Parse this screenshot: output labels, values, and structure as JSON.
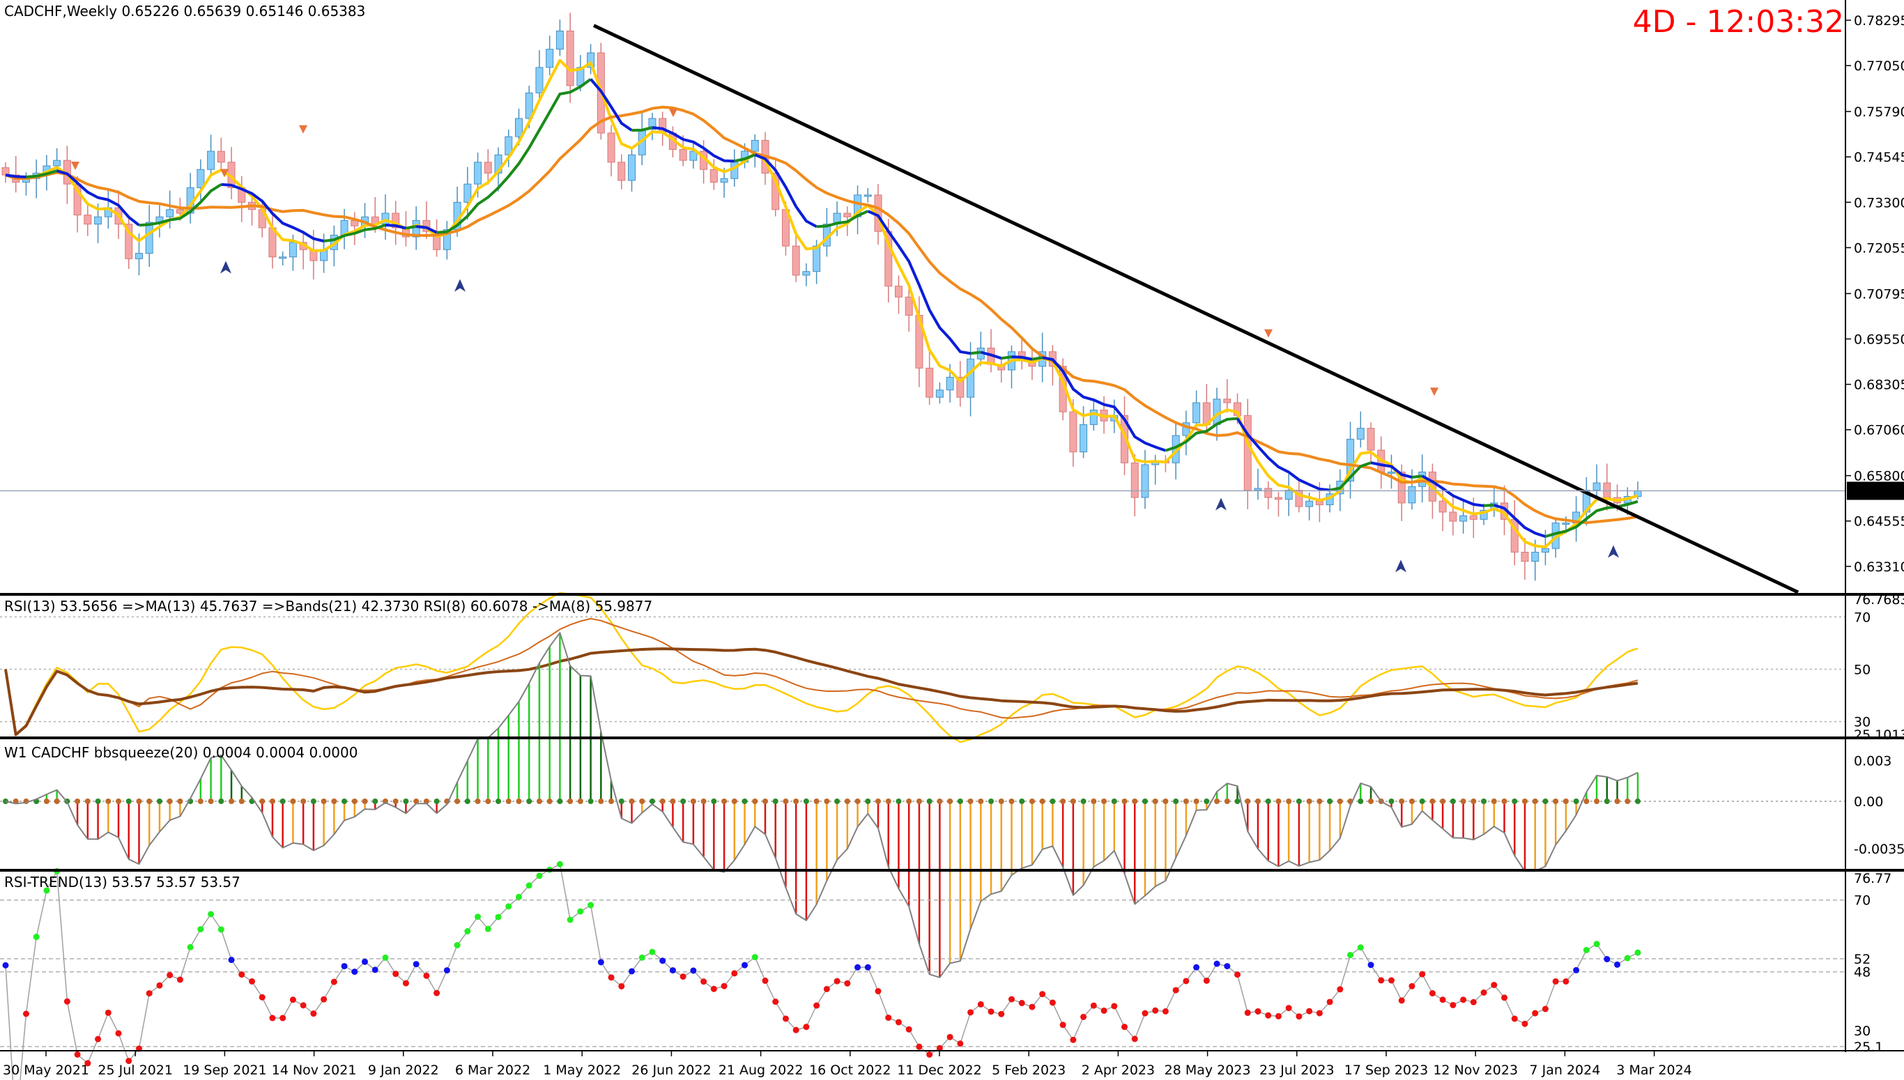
{
  "header": {
    "title": "CADCHF,Weekly  0.65226 0.65639 0.65146 0.65383",
    "timer": "4D - 12:03:32",
    "price_tag": "0.65383",
    "rsi_title": "RSI(13) 53.5656  =>MA(13) 45.7637  =>Bands(21) 42.3730  RSI(8) 60.6078  ->MA(8) 55.9877",
    "bbs_title": "W1 CADCHF bbsqueeze(20) 0.0004 0.0004 0.0000",
    "trend_title": "RSI-TREND(13) 53.57 53.57 53.57"
  },
  "colors": {
    "bull": "#87cefa",
    "bear": "#f4a6a6",
    "yellow_ma": "#ffcc00",
    "orange_ma": "#f08a1c",
    "green_ma": "#1a8a1a",
    "blue_ma": "#0a1ed8",
    "trendline": "#000000",
    "rsi_yellow": "#ffcc00",
    "rsi_brown": "#d2691e",
    "rsi_dark": "#8b4513",
    "dot_green": "#22ee22",
    "dot_red": "#ee1111",
    "dot_blue": "#1111ee",
    "timer": "#ff0000"
  },
  "x_labels": [
    "30 May 2021",
    "25 Jul 2021",
    "19 Sep 2021",
    "14 Nov 2021",
    "9 Jan 2022",
    "6 Mar 2022",
    "1 May 2022",
    "26 Jun 2022",
    "21 Aug 2022",
    "16 Oct 2022",
    "11 Dec 2022",
    "5 Feb 2023",
    "2 Apr 2023",
    "28 May 2023",
    "23 Jul 2023",
    "17 Sep 2023",
    "12 Nov 2023",
    "7 Jan 2024",
    "3 Mar 2024"
  ],
  "price_axis": [
    "0.78295",
    "0.77050",
    "0.75790",
    "0.74545",
    "0.73300",
    "0.72055",
    "0.70795",
    "0.69550",
    "0.68305",
    "0.67060",
    "0.65800",
    "0.64555",
    "0.63310"
  ],
  "rsi_axis": [
    "76.7683",
    "70",
    "50",
    "30",
    "25.1013"
  ],
  "bbs_axis": [
    "0.003",
    "0.00",
    "-0.0035"
  ],
  "trend_axis": [
    "76.77",
    "70",
    "52",
    "48",
    "25.1",
    "30"
  ],
  "chart_data": {
    "type": "candlestick",
    "symbol": "CADCHF",
    "timeframe": "Weekly",
    "ohlc_last": {
      "open": 0.65226,
      "high": 0.65639,
      "low": 0.65146,
      "close": 0.65383
    },
    "ylim": [
      0.626,
      0.7885
    ],
    "close": [
      0.7405,
      0.7385,
      0.7395,
      0.741,
      0.743,
      0.7445,
      0.738,
      0.7295,
      0.727,
      0.729,
      0.7315,
      0.727,
      0.7175,
      0.719,
      0.7275,
      0.729,
      0.731,
      0.73,
      0.737,
      0.742,
      0.747,
      0.744,
      0.737,
      0.733,
      0.731,
      0.726,
      0.718,
      0.718,
      0.722,
      0.72,
      0.717,
      0.72,
      0.724,
      0.728,
      0.7265,
      0.729,
      0.727,
      0.73,
      0.726,
      0.7235,
      0.728,
      0.725,
      0.72,
      0.7255,
      0.733,
      0.738,
      0.744,
      0.741,
      0.746,
      0.751,
      0.756,
      0.763,
      0.77,
      0.775,
      0.78,
      0.765,
      0.77,
      0.774,
      0.752,
      0.744,
      0.739,
      0.746,
      0.753,
      0.756,
      0.752,
      0.7475,
      0.7445,
      0.747,
      0.742,
      0.7385,
      0.7395,
      0.744,
      0.747,
      0.75,
      0.741,
      0.731,
      0.721,
      0.713,
      0.714,
      0.721,
      0.727,
      0.73,
      0.729,
      0.735,
      0.735,
      0.725,
      0.71,
      0.707,
      0.702,
      0.6875,
      0.6795,
      0.6815,
      0.685,
      0.6795,
      0.69,
      0.693,
      0.6885,
      0.687,
      0.692,
      0.69,
      0.688,
      0.692,
      0.688,
      0.6755,
      0.6645,
      0.672,
      0.676,
      0.673,
      0.6745,
      0.6615,
      0.652,
      0.661,
      0.662,
      0.6615,
      0.669,
      0.6725,
      0.678,
      0.672,
      0.679,
      0.678,
      0.6745,
      0.654,
      0.6545,
      0.652,
      0.6515,
      0.654,
      0.6495,
      0.651,
      0.65,
      0.653,
      0.6565,
      0.668,
      0.671,
      0.665,
      0.659,
      0.659,
      0.6505,
      0.655,
      0.659,
      0.651,
      0.648,
      0.6455,
      0.647,
      0.646,
      0.6485,
      0.6505,
      0.646,
      0.637,
      0.6345,
      0.637,
      0.638,
      0.645,
      0.645,
      0.648,
      0.654,
      0.656,
      0.652,
      0.6505,
      0.6523,
      0.6538
    ]
  }
}
